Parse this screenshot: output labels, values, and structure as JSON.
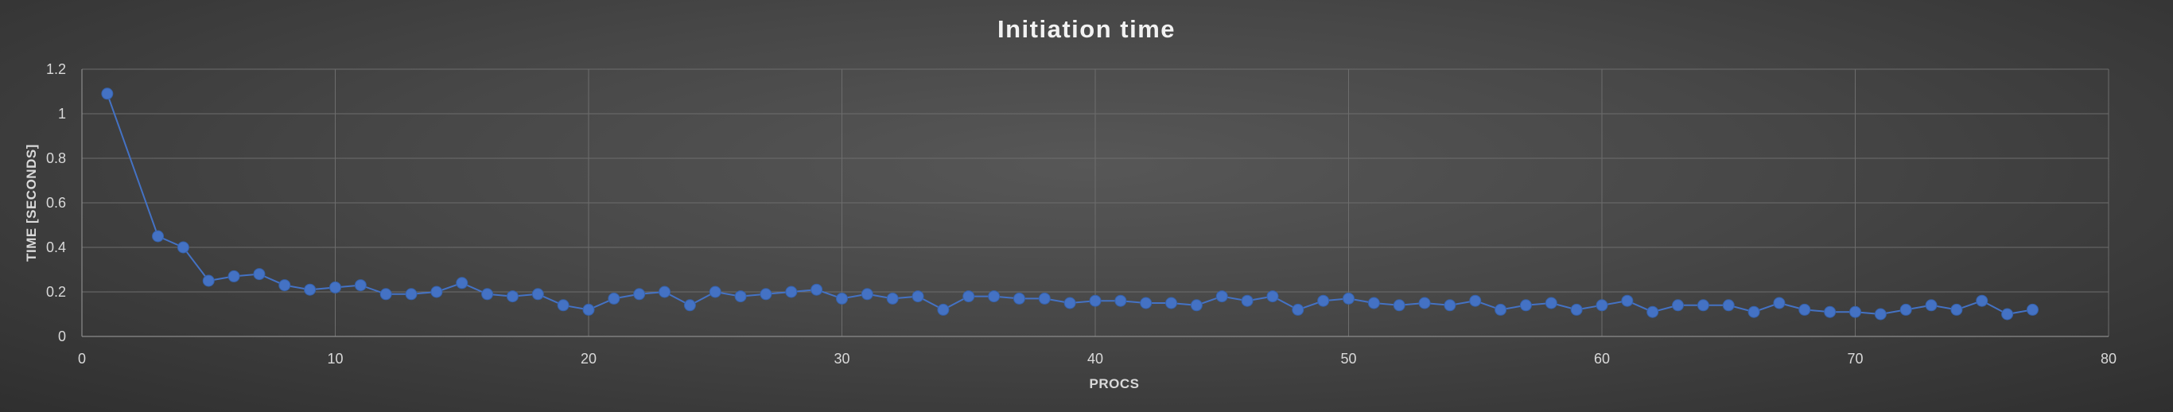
{
  "chart_data": {
    "type": "line",
    "title": "Initiation time",
    "xlabel": "PROCS",
    "ylabel": "TIME [SECONDS]",
    "xlim": [
      0,
      80
    ],
    "ylim": [
      0,
      1.2
    ],
    "x_ticks": [
      "0",
      "10",
      "20",
      "30",
      "40",
      "50",
      "60",
      "70",
      "80"
    ],
    "y_ticks": [
      "0",
      "0.2",
      "0.4",
      "0.6",
      "0.8",
      "1",
      "1.2"
    ],
    "grid": true,
    "legend": "none",
    "color": "#4472c4",
    "series": [
      {
        "x": [
          1,
          3,
          4,
          5,
          6,
          7,
          8,
          9,
          10,
          11,
          12,
          13,
          14,
          15,
          16,
          17,
          18,
          19,
          20,
          21,
          22,
          23,
          24,
          25,
          26,
          27,
          28,
          29,
          30,
          31,
          32,
          33,
          34,
          35,
          36,
          37,
          38,
          39,
          40,
          41,
          42,
          43,
          44,
          45,
          46,
          47,
          48,
          49,
          50,
          51,
          52,
          53,
          54,
          55,
          56,
          57,
          58,
          59,
          60,
          61,
          62,
          63,
          64,
          65,
          66,
          67,
          68,
          69,
          70,
          71,
          72,
          73,
          74,
          75,
          76,
          77
        ],
        "y": [
          1.09,
          0.45,
          0.4,
          0.25,
          0.27,
          0.28,
          0.23,
          0.21,
          0.22,
          0.23,
          0.19,
          0.19,
          0.2,
          0.24,
          0.19,
          0.18,
          0.19,
          0.14,
          0.12,
          0.17,
          0.19,
          0.2,
          0.14,
          0.2,
          0.18,
          0.19,
          0.2,
          0.21,
          0.17,
          0.19,
          0.17,
          0.18,
          0.12,
          0.18,
          0.18,
          0.17,
          0.17,
          0.15,
          0.16,
          0.16,
          0.15,
          0.15,
          0.14,
          0.18,
          0.16,
          0.18,
          0.12,
          0.16,
          0.17,
          0.15,
          0.14,
          0.15,
          0.14,
          0.16,
          0.12,
          0.14,
          0.15,
          0.12,
          0.14,
          0.16,
          0.11,
          0.14,
          0.14,
          0.14,
          0.11,
          0.15,
          0.12,
          0.11,
          0.11,
          0.1,
          0.12,
          0.14,
          0.12,
          0.16,
          0.1,
          0.12
        ]
      }
    ]
  }
}
